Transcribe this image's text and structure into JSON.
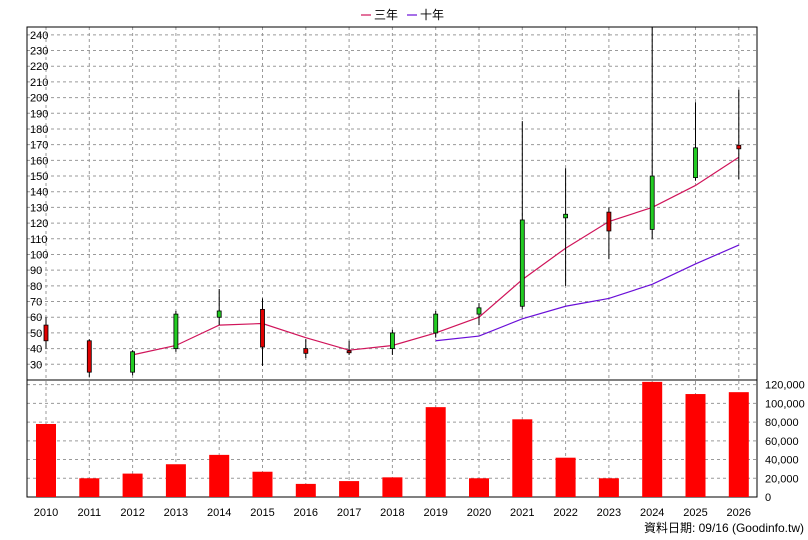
{
  "chart_data": {
    "type": "candlestick+line+bar",
    "legend": {
      "position": "top-center",
      "items": [
        {
          "name": "三年",
          "color": "#d0145a"
        },
        {
          "name": "十年",
          "color": "#6a0fd8"
        }
      ]
    },
    "categories": [
      "2010",
      "2011",
      "2012",
      "2013",
      "2014",
      "2015",
      "2016",
      "2017",
      "2018",
      "2019",
      "2020",
      "2021",
      "2022",
      "2023",
      "2024",
      "2025",
      "2026"
    ],
    "price_axis": {
      "min": 20,
      "max": 245,
      "ticks": [
        30,
        40,
        50,
        60,
        70,
        80,
        90,
        100,
        110,
        120,
        130,
        140,
        150,
        160,
        170,
        180,
        190,
        200,
        210,
        220,
        230,
        240
      ]
    },
    "volume_axis": {
      "min": 0,
      "max": 125000,
      "ticks": [
        0,
        20000,
        40000,
        60000,
        80000,
        100000,
        120000
      ],
      "tick_labels": [
        "0",
        "20,000",
        "40,000",
        "60,000",
        "80,000",
        "100,000",
        "120,000"
      ]
    },
    "candles": [
      {
        "o": 45,
        "h": 60,
        "l": 40,
        "c": 55
      },
      {
        "o": 25,
        "h": 46,
        "l": 22,
        "c": 45
      },
      {
        "o": 38,
        "h": 39,
        "l": 23,
        "c": 25
      },
      {
        "o": 62,
        "h": 64,
        "l": 38,
        "c": 40
      },
      {
        "o": 64,
        "h": 78,
        "l": 55,
        "c": 60
      },
      {
        "o": 41,
        "h": 72,
        "l": 29,
        "c": 65
      },
      {
        "o": 37,
        "h": 46,
        "l": 34,
        "c": 40
      },
      {
        "o": 38,
        "h": 45,
        "l": 36,
        "c": 38
      },
      {
        "o": 50,
        "h": 52,
        "l": 36,
        "c": 40
      },
      {
        "o": 62,
        "h": 64,
        "l": 47,
        "c": 50
      },
      {
        "o": 66,
        "h": 69,
        "l": 55,
        "c": 62
      },
      {
        "o": 122,
        "h": 185,
        "l": 65,
        "c": 67
      },
      {
        "o": 125,
        "h": 155,
        "l": 80,
        "c": 124
      },
      {
        "o": 115,
        "h": 130,
        "l": 97,
        "c": 127
      },
      {
        "o": 150,
        "h": 245,
        "l": 110,
        "c": 116
      },
      {
        "o": 168,
        "h": 197,
        "l": 147,
        "c": 149
      },
      {
        "o": 168,
        "h": 205,
        "l": 148,
        "c": 169
      }
    ],
    "series": [
      {
        "name": "三年",
        "values": [
          null,
          null,
          36,
          42,
          55,
          56,
          47,
          39,
          42,
          50,
          60,
          84,
          104,
          121,
          130,
          144,
          162
        ]
      },
      {
        "name": "十年",
        "values": [
          null,
          null,
          null,
          null,
          null,
          null,
          null,
          null,
          null,
          45,
          48,
          59,
          67,
          72,
          81,
          94,
          106
        ]
      }
    ],
    "volume": [
      78000,
      20000,
      25000,
      35000,
      45000,
      27000,
      14000,
      17000,
      21000,
      96000,
      20000,
      83000,
      42000,
      20000,
      123000,
      110000,
      112000
    ],
    "colors": {
      "up": "#e00000",
      "down": "#22cc22",
      "volume": "#ff0000",
      "grid": "#9a9a9a"
    },
    "credit": "資料日期: 09/16 (Goodinfo.tw)"
  }
}
